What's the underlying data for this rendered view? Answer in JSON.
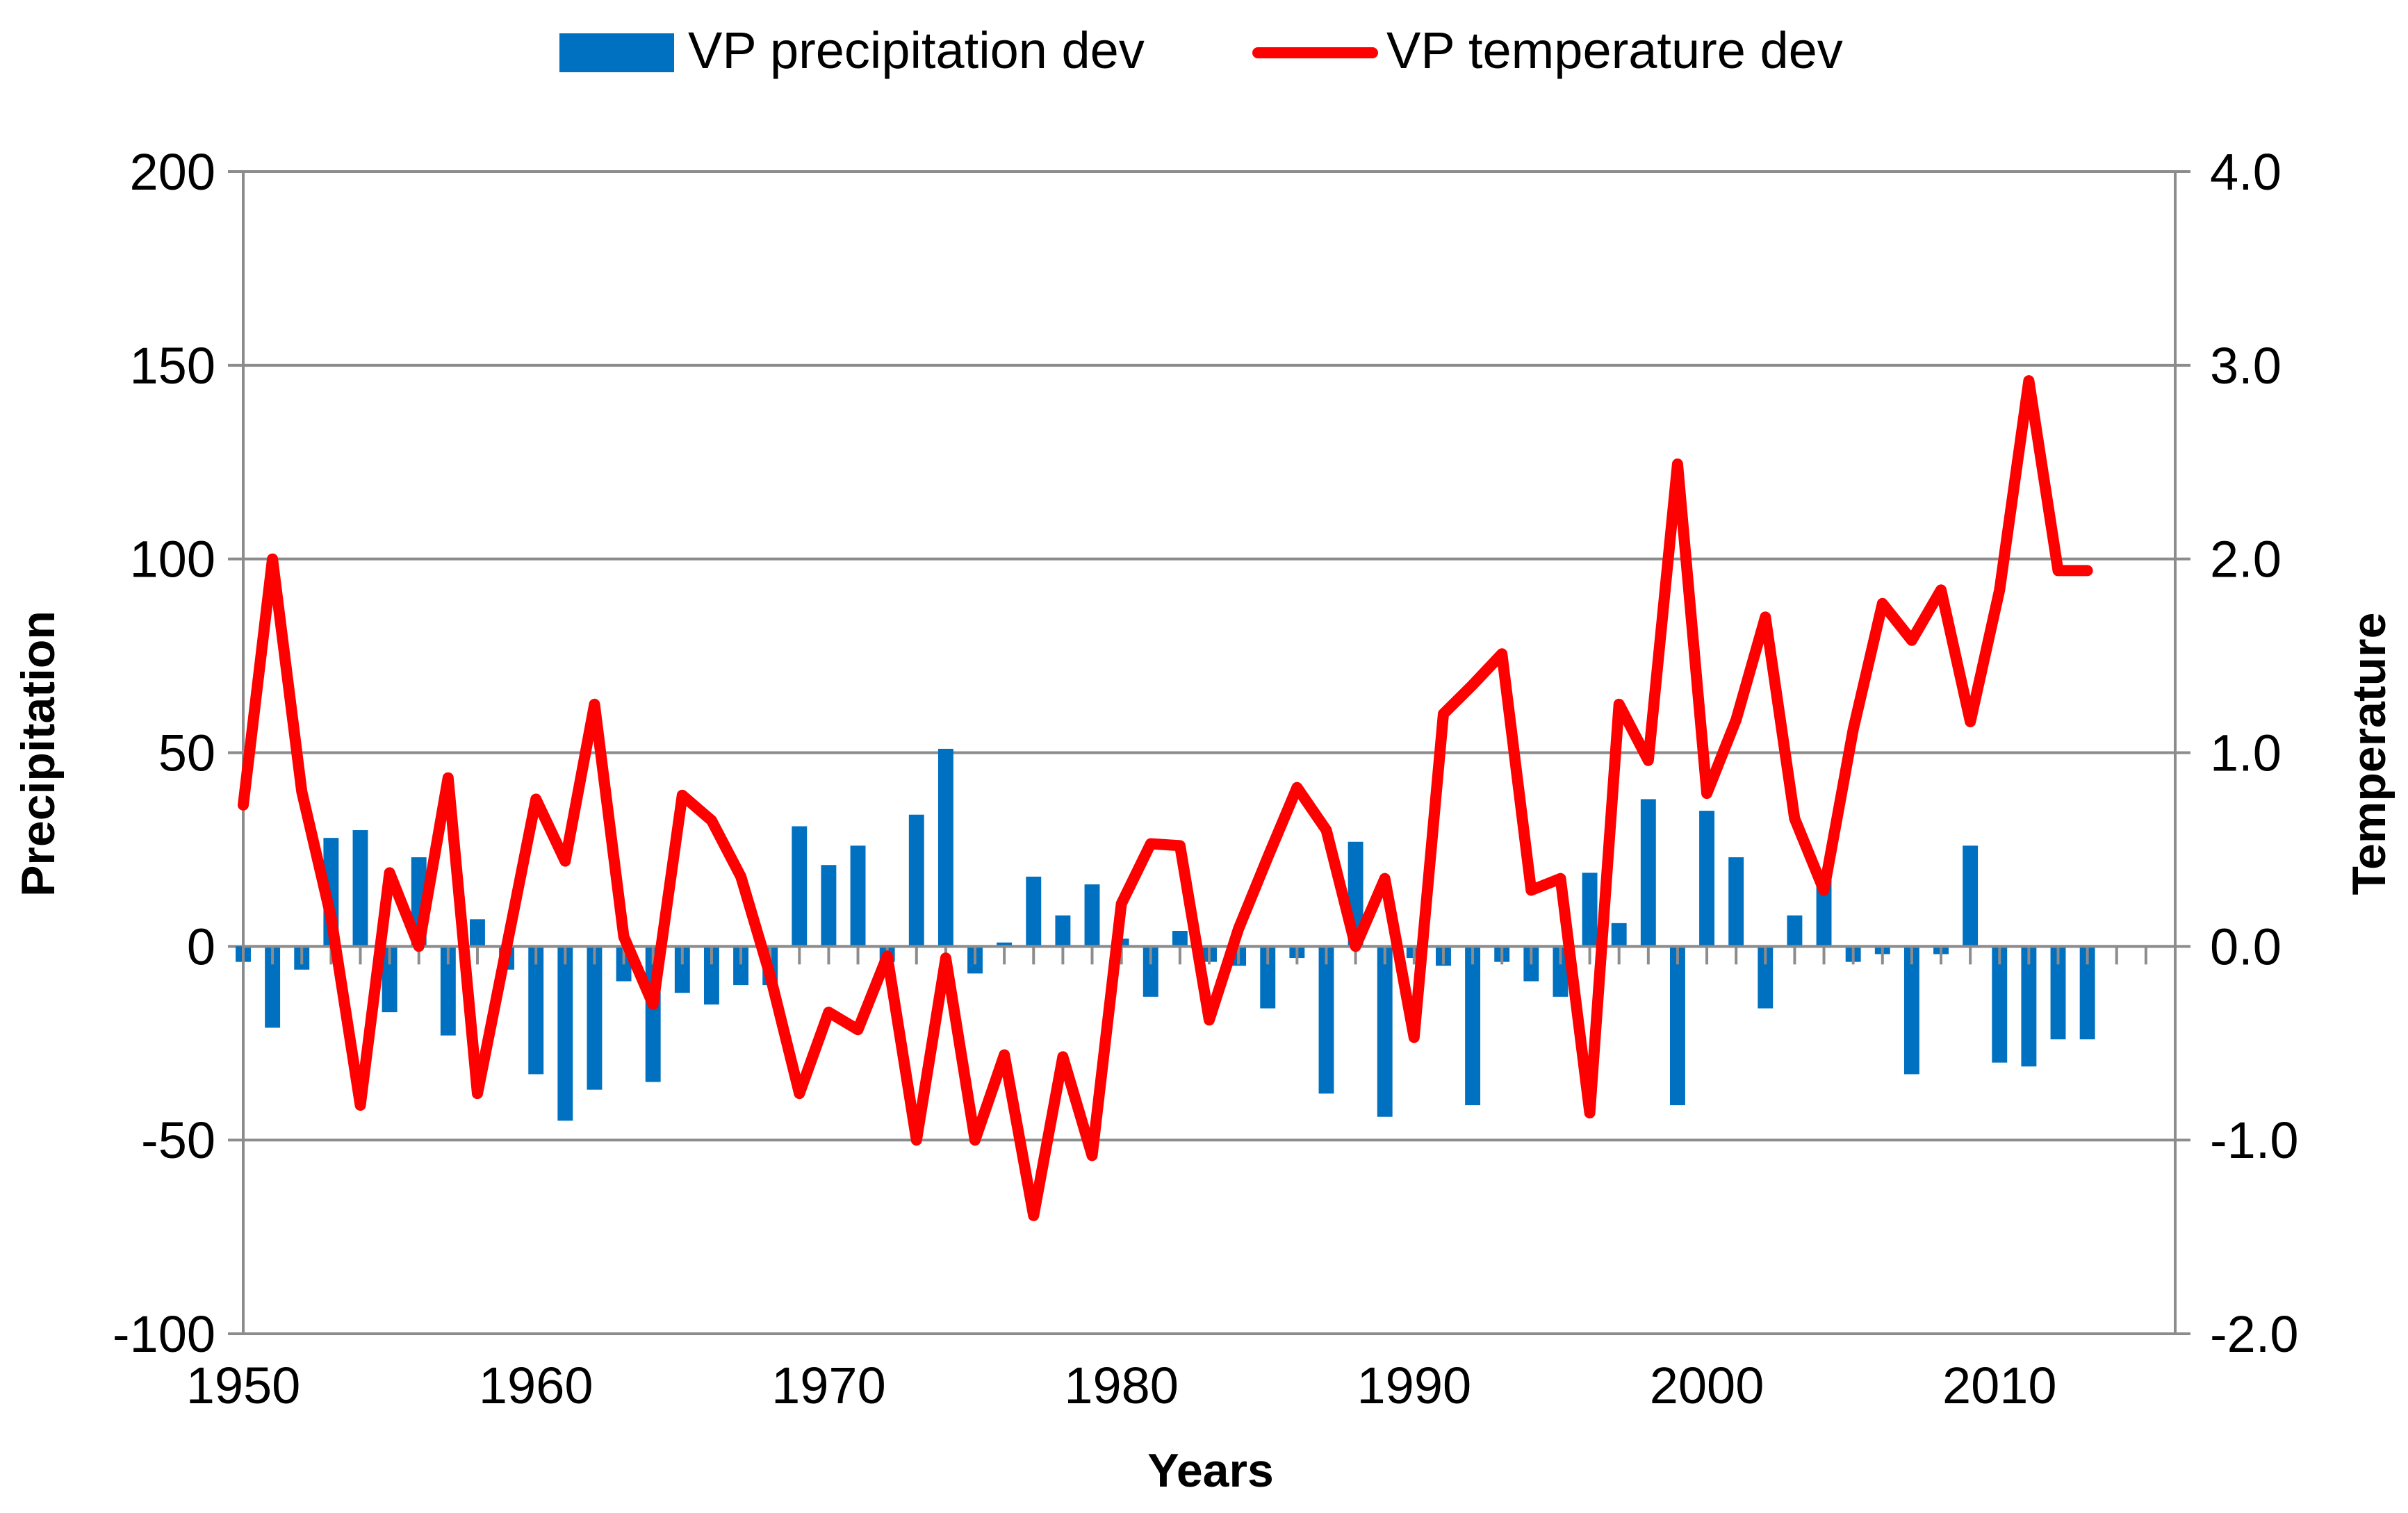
{
  "chart_data": {
    "type": "bar+line",
    "legend": {
      "position": "top-center",
      "entries": [
        {
          "label": "VP precipitation dev",
          "kind": "bar",
          "color": "#0070C0"
        },
        {
          "label": "VP temperature dev",
          "kind": "line",
          "color": "#FF0000"
        }
      ]
    },
    "xlabel": "Years",
    "ylabel_left": "Precipitation",
    "ylabel_right": "Temperature",
    "xlim": [
      1950,
      2016
    ],
    "x_ticks": [
      1950,
      1960,
      1970,
      1980,
      1990,
      2000,
      2010
    ],
    "x_tick_labels": [
      "1950",
      "1960",
      "1970",
      "1980",
      "1990",
      "2000",
      "2010"
    ],
    "ylim_left": [
      -100,
      200
    ],
    "y_ticks_left": [
      -100,
      -50,
      0,
      50,
      100,
      150,
      200
    ],
    "y_tick_labels_left": [
      "-100",
      "-50",
      "0",
      "50",
      "100",
      "150",
      "200"
    ],
    "ylim_right": [
      -2.0,
      4.0
    ],
    "y_ticks_right": [
      -2.0,
      -1.0,
      0.0,
      1.0,
      2.0,
      3.0,
      4.0
    ],
    "y_tick_labels_right": [
      "-2.0",
      "-1.0",
      "0.0",
      "1.0",
      "2.0",
      "3.0",
      "4.0"
    ],
    "grid": true,
    "x": [
      1950,
      1951,
      1952,
      1953,
      1954,
      1955,
      1956,
      1957,
      1958,
      1959,
      1960,
      1961,
      1962,
      1963,
      1964,
      1965,
      1966,
      1967,
      1968,
      1969,
      1970,
      1971,
      1972,
      1973,
      1974,
      1975,
      1976,
      1977,
      1978,
      1979,
      1980,
      1981,
      1982,
      1983,
      1984,
      1985,
      1986,
      1987,
      1988,
      1989,
      1990,
      1991,
      1992,
      1993,
      1994,
      1995,
      1996,
      1997,
      1998,
      1999,
      2000,
      2001,
      2002,
      2003,
      2004,
      2005,
      2006,
      2007,
      2008,
      2009,
      2010,
      2011,
      2012,
      2013
    ],
    "series": [
      {
        "name": "VP precipitation dev",
        "axis": "left",
        "type": "bar",
        "values": [
          -4,
          -21,
          -6,
          28,
          30,
          -17,
          23,
          -23,
          7,
          -6,
          -33,
          -45,
          -37,
          -9,
          -35,
          -12,
          -15,
          -10,
          -10,
          31,
          21,
          26,
          -4,
          34,
          51,
          -7,
          1,
          18,
          8,
          16,
          2,
          -13,
          4,
          -4,
          -5,
          -16,
          -3,
          -38,
          27,
          -44,
          -3,
          -5,
          -41,
          -4,
          -9,
          -13,
          19,
          6,
          38,
          -41,
          35,
          23,
          -16,
          8,
          18,
          -4,
          -2,
          -33,
          -2,
          26,
          -30,
          -31,
          -24,
          -24
        ]
      },
      {
        "name": "VP temperature dev",
        "axis": "right",
        "type": "line",
        "values": [
          0.73,
          2.0,
          0.8,
          0.15,
          -0.82,
          0.38,
          0.0,
          0.87,
          -0.76,
          0.0,
          0.76,
          0.44,
          1.25,
          0.05,
          -0.3,
          0.78,
          0.65,
          0.36,
          -0.15,
          -0.76,
          -0.34,
          -0.43,
          -0.05,
          -1.0,
          -0.06,
          -1.0,
          -0.56,
          -1.39,
          -0.57,
          -1.08,
          0.22,
          0.53,
          0.52,
          -0.38,
          0.09,
          0.46,
          0.82,
          0.6,
          0.0,
          0.35,
          -0.47,
          1.2,
          1.35,
          1.51,
          0.29,
          0.35,
          -0.86,
          1.25,
          0.96,
          2.49,
          0.79,
          1.17,
          1.7,
          0.66,
          0.29,
          1.12,
          1.77,
          1.58,
          1.84,
          1.16,
          1.84,
          2.92,
          1.94,
          1.94
        ]
      }
    ]
  }
}
